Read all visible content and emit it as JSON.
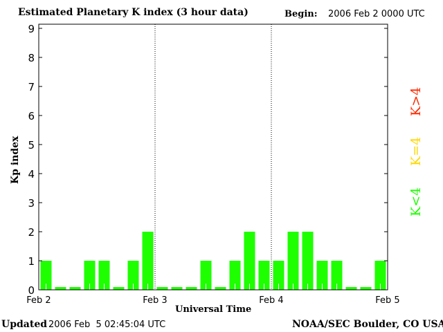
{
  "chart_data": {
    "type": "bar",
    "title": "Estimated Planetary K index (3 hour data)",
    "begin_label": "Begin:",
    "begin_value": "2006 Feb 2 0000 UTC",
    "xlabel": "Universal Time",
    "ylabel": "Kp index",
    "ylim": [
      0,
      9
    ],
    "yticks": [
      "0",
      "1",
      "2",
      "3",
      "4",
      "5",
      "6",
      "7",
      "8",
      "9"
    ],
    "xticks": [
      "Feb 2",
      "Feb 3",
      "Feb 4",
      "Feb 5"
    ],
    "values": [
      1,
      0,
      0,
      1,
      1,
      0,
      1,
      2,
      0,
      0,
      0,
      1,
      0,
      1,
      2,
      1,
      1,
      2,
      2,
      1,
      1,
      0,
      0,
      1
    ],
    "bar_color": "#1eff00",
    "legend": [
      {
        "label": "K>4",
        "color": "#ff2a00"
      },
      {
        "label": "K=4",
        "color": "#ffd800"
      },
      {
        "label": "K<4",
        "color": "#1eff00"
      }
    ]
  },
  "footer": {
    "updated_label": "Updated",
    "updated_value": "2006 Feb  5 02:45:04 UTC",
    "source": "NOAA/SEC Boulder, CO USA"
  }
}
